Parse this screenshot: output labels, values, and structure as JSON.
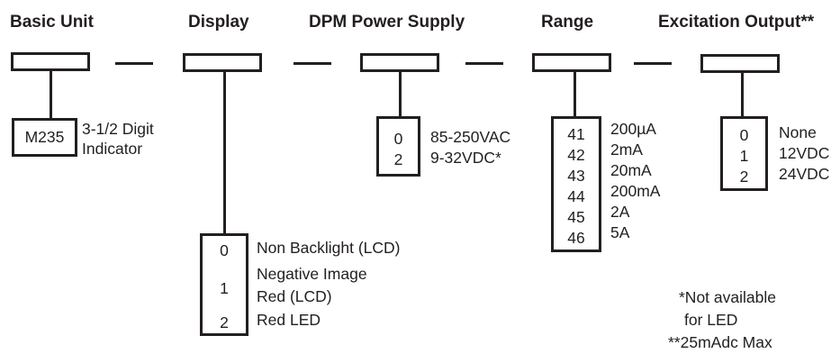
{
  "headings": [
    "Basic Unit",
    "Display",
    "DPM Power Supply",
    "Range",
    "Excitation Output**"
  ],
  "basic_unit": {
    "code": "M235",
    "desc_line1": "3-1/2 Digit",
    "desc_line2": "Indicator"
  },
  "display": {
    "options": [
      {
        "code": "0",
        "label": "Non Backlight (LCD)"
      },
      {
        "code": "1",
        "label_line1": "Negative Image",
        "label_line2": "Red (LCD)"
      },
      {
        "code": "2",
        "label": "Red LED"
      }
    ]
  },
  "power": {
    "options": [
      {
        "code": "0",
        "label": "85-250VAC"
      },
      {
        "code": "2",
        "label": "9-32VDC*"
      }
    ]
  },
  "range": {
    "options": [
      {
        "code": "41",
        "label": "200µA"
      },
      {
        "code": "42",
        "label": "2mA"
      },
      {
        "code": "43",
        "label": "20mA"
      },
      {
        "code": "44",
        "label": "200mA"
      },
      {
        "code": "45",
        "label": "2A"
      },
      {
        "code": "46",
        "label": "5A"
      }
    ]
  },
  "excitation": {
    "options": [
      {
        "code": "0",
        "label": "None"
      },
      {
        "code": "1",
        "label": "12VDC"
      },
      {
        "code": "2",
        "label": "24VDC"
      }
    ]
  },
  "footnotes": [
    "*Not available",
    "for LED",
    "**25mAdc Max"
  ]
}
